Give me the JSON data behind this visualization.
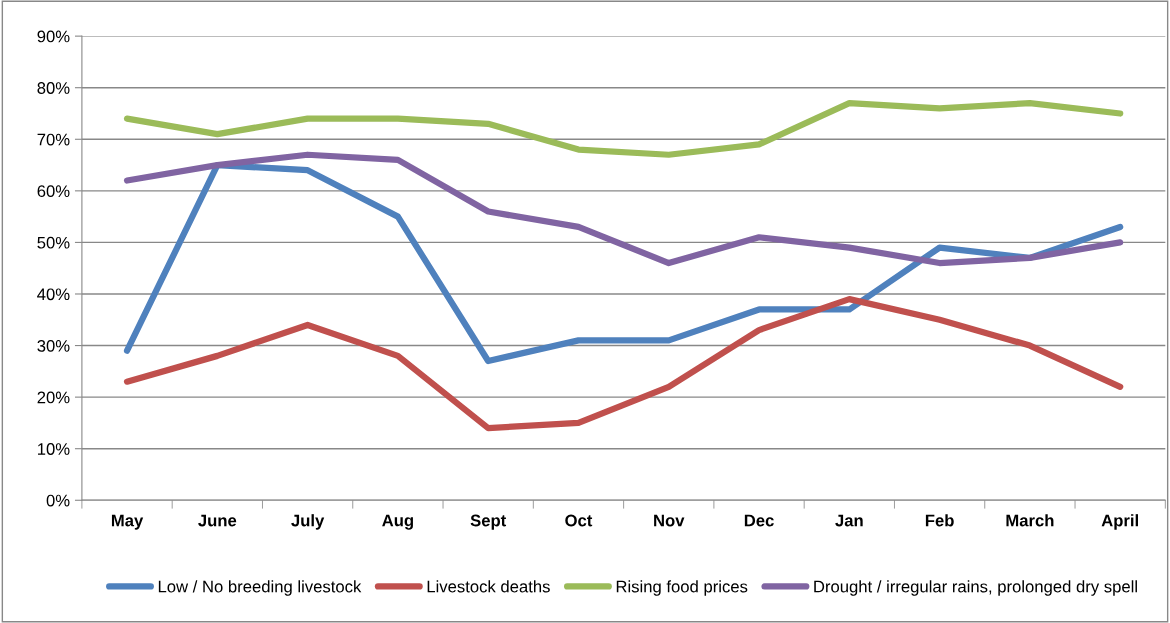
{
  "chart_data": {
    "type": "line",
    "categories": [
      "May",
      "June",
      "July",
      "Aug",
      "Sept",
      "Oct",
      "Nov",
      "Dec",
      "Jan",
      "Feb",
      "March",
      "April"
    ],
    "series": [
      {
        "name": "Low / No breeding livestock",
        "color": "#4f81bd",
        "values": [
          29,
          65,
          64,
          55,
          27,
          31,
          31,
          37,
          37,
          49,
          47,
          53
        ]
      },
      {
        "name": "Livestock deaths",
        "color": "#c0504d",
        "values": [
          23,
          28,
          34,
          28,
          14,
          15,
          22,
          33,
          39,
          35,
          30,
          22
        ]
      },
      {
        "name": "Rising food prices",
        "color": "#9bbb59",
        "values": [
          74,
          71,
          74,
          74,
          73,
          68,
          67,
          69,
          77,
          76,
          77,
          75
        ]
      },
      {
        "name": "Drought / irregular rains, prolonged dry spell",
        "color": "#8064a2",
        "values": [
          62,
          65,
          67,
          66,
          56,
          53,
          46,
          51,
          49,
          46,
          47,
          50
        ]
      }
    ],
    "ylim": [
      0,
      90
    ],
    "yticks": [
      {
        "value": 0,
        "label": "0%"
      },
      {
        "value": 10,
        "label": "10%"
      },
      {
        "value": 20,
        "label": "20%"
      },
      {
        "value": 30,
        "label": "30%"
      },
      {
        "value": 40,
        "label": "40%"
      },
      {
        "value": 50,
        "label": "50%"
      },
      {
        "value": 60,
        "label": "60%"
      },
      {
        "value": 70,
        "label": "70%"
      },
      {
        "value": 80,
        "label": "80%"
      },
      {
        "value": 90,
        "label": "90%"
      }
    ],
    "grid": "y",
    "legend": "bottom",
    "marker": "none",
    "line_style": "solid"
  }
}
